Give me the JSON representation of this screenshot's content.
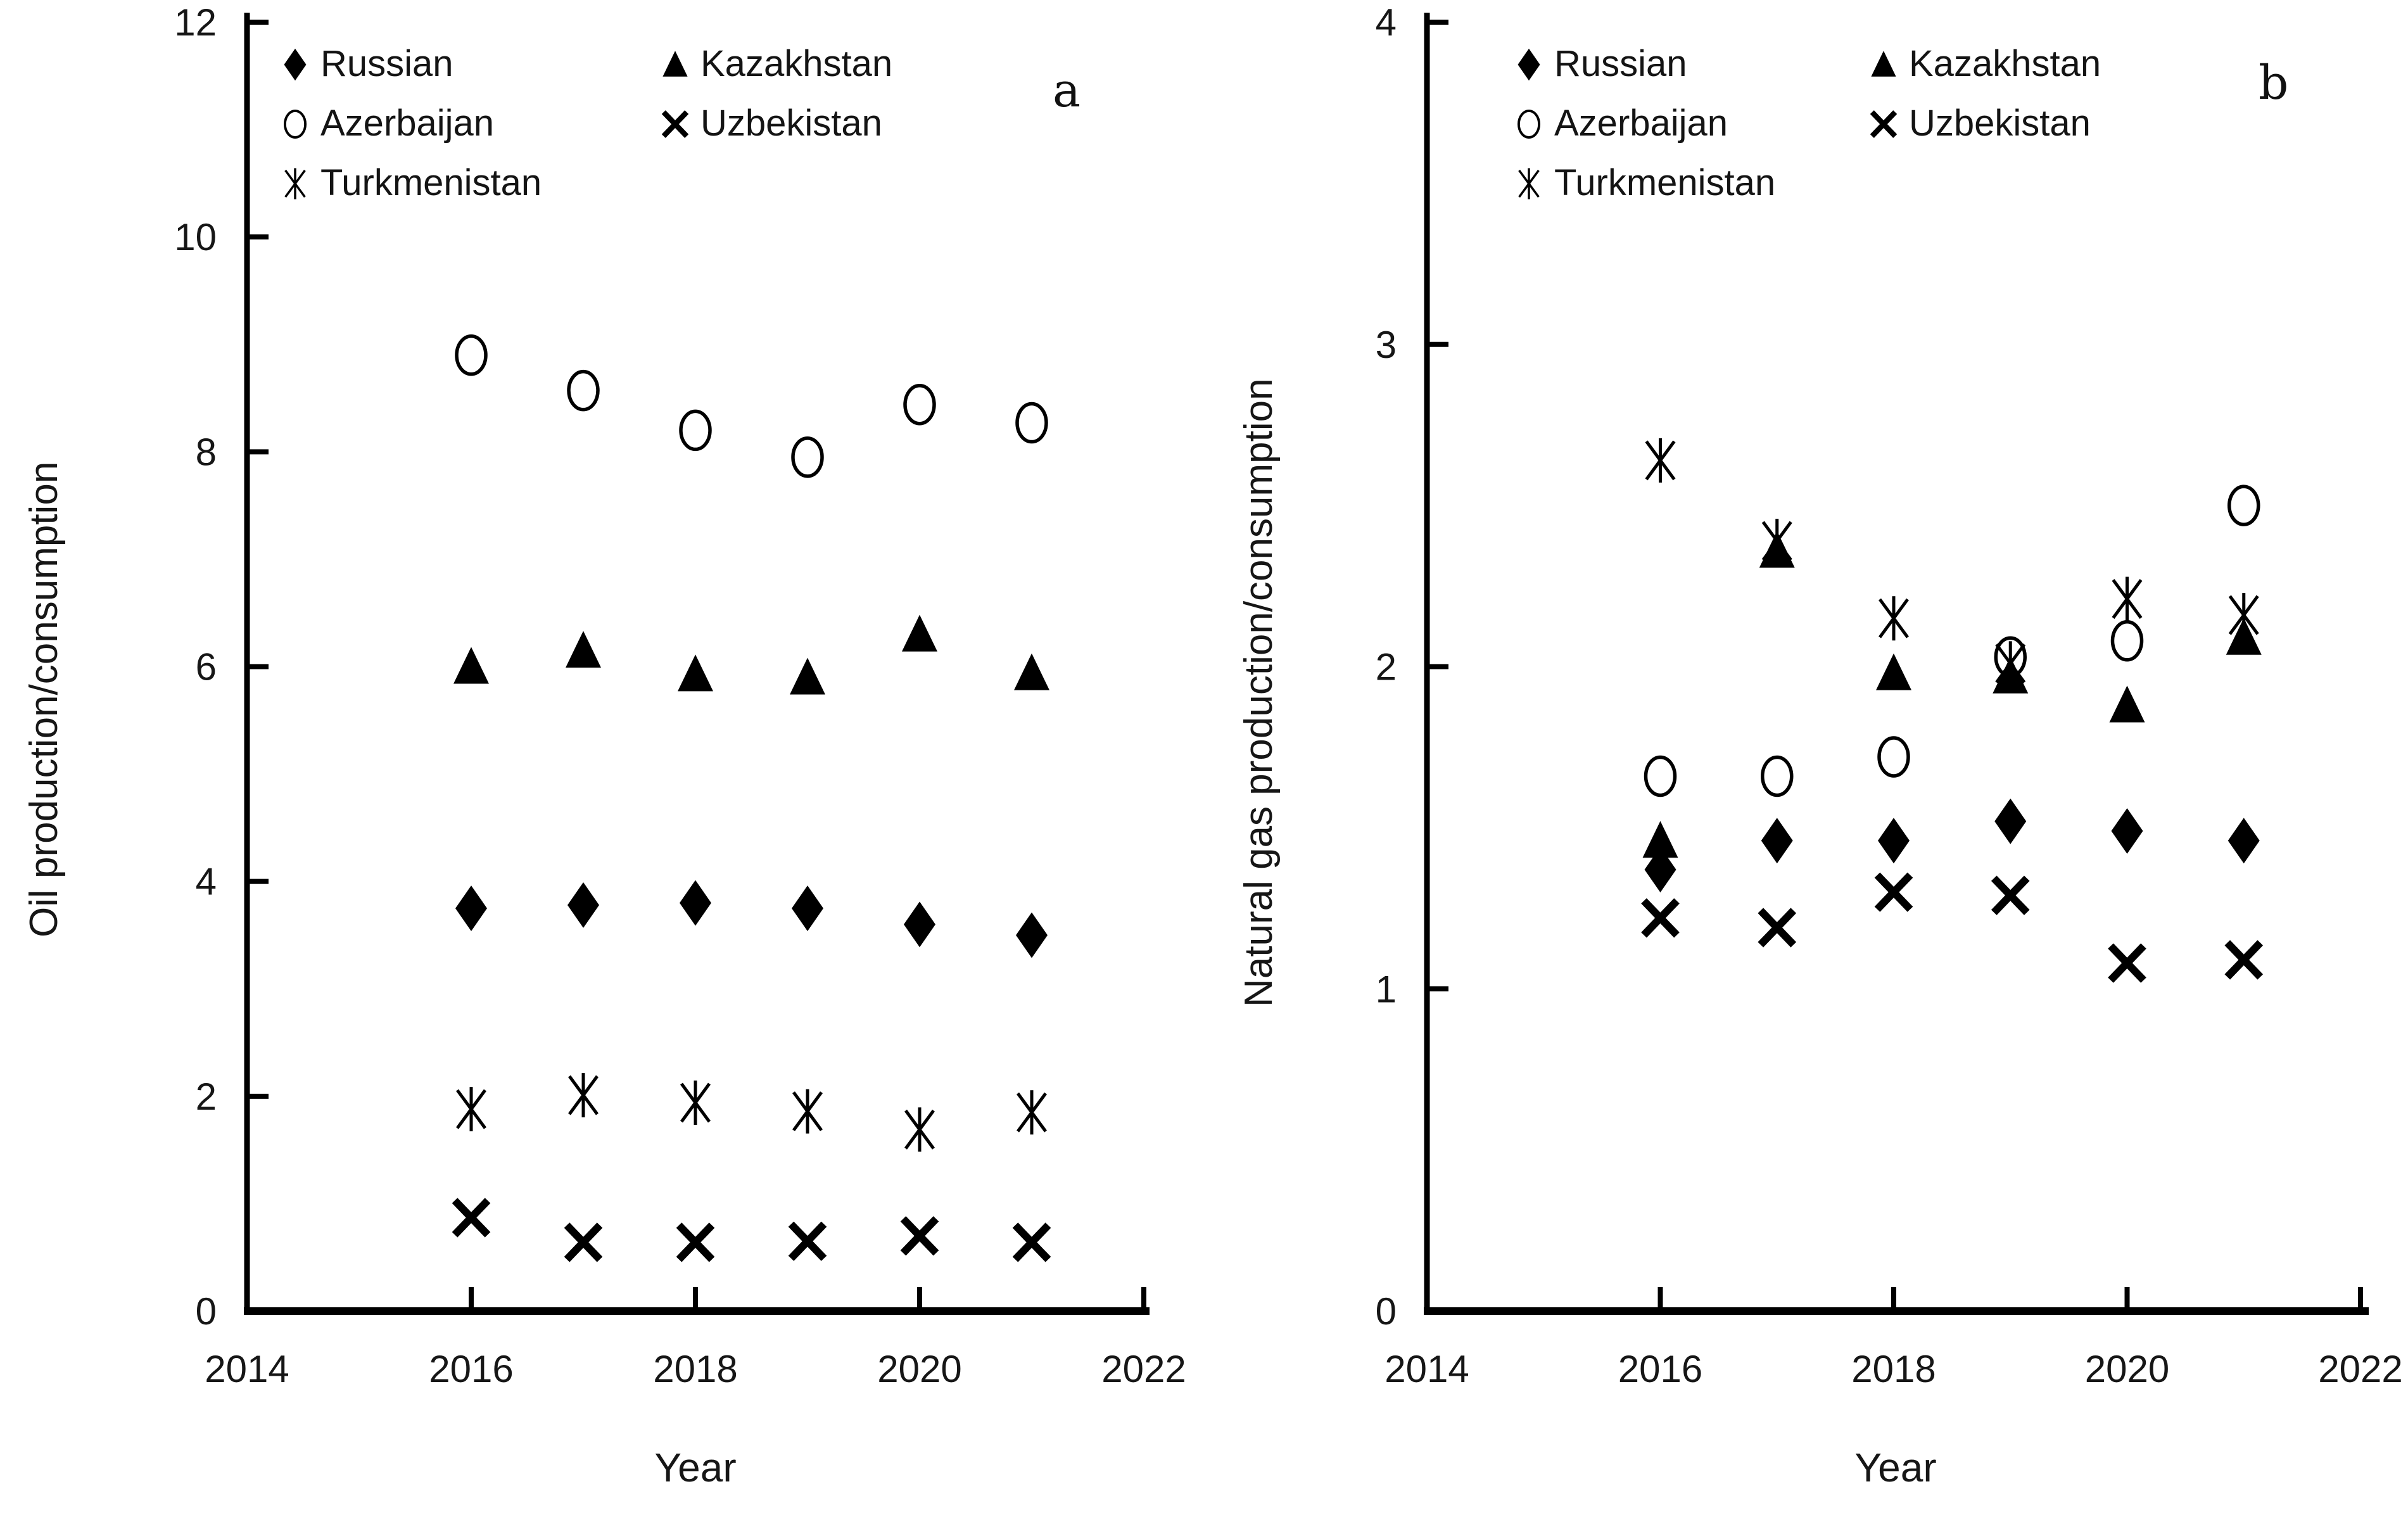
{
  "figure": {
    "background": "#ffffff",
    "marker_color": "#000000",
    "axis_color": "#000000"
  },
  "chart_data": [
    {
      "type": "scatter",
      "panel_label": "a",
      "xlabel": "Year",
      "ylabel": "Oil production/consumption",
      "xlim": [
        2014,
        2022
      ],
      "ylim": [
        0,
        12
      ],
      "xticks": [
        2014,
        2016,
        2018,
        2020,
        2022
      ],
      "yticks": [
        0,
        2,
        4,
        6,
        8,
        10,
        12
      ],
      "grid": false,
      "legend_position": "top-left",
      "x": [
        2016,
        2017,
        2018,
        2019,
        2020,
        2021
      ],
      "series": [
        {
          "name": "Russian",
          "marker": "diamond",
          "values": [
            3.75,
            3.78,
            3.8,
            3.75,
            3.6,
            3.5
          ]
        },
        {
          "name": "Kazakhstan",
          "marker": "triangle",
          "values": [
            6.0,
            6.15,
            5.93,
            5.9,
            6.3,
            5.94
          ]
        },
        {
          "name": "Azerbaijan",
          "marker": "circle-open",
          "values": [
            8.9,
            8.57,
            8.2,
            7.95,
            8.44,
            8.27
          ]
        },
        {
          "name": "Uzbekistan",
          "marker": "x-cross",
          "values": [
            0.87,
            0.64,
            0.64,
            0.65,
            0.7,
            0.64
          ]
        },
        {
          "name": "Turkmenistan",
          "marker": "asterisk",
          "values": [
            1.88,
            2.01,
            1.94,
            1.86,
            1.69,
            1.85
          ]
        }
      ]
    },
    {
      "type": "scatter",
      "panel_label": "b",
      "xlabel": "Year",
      "ylabel": "Natural gas production/consumption",
      "xlim": [
        2014,
        2022
      ],
      "ylim": [
        0,
        4
      ],
      "xticks": [
        2014,
        2016,
        2018,
        2020,
        2022
      ],
      "yticks": [
        0,
        1,
        2,
        3,
        4
      ],
      "grid": false,
      "legend_position": "top-left",
      "x": [
        2016,
        2017,
        2018,
        2019,
        2020,
        2021
      ],
      "series": [
        {
          "name": "Russian",
          "marker": "diamond",
          "values": [
            1.37,
            1.46,
            1.46,
            1.52,
            1.49,
            1.46
          ]
        },
        {
          "name": "Kazakhstan",
          "marker": "triangle",
          "values": [
            1.46,
            2.36,
            1.98,
            1.97,
            1.88,
            2.09
          ]
        },
        {
          "name": "Azerbaijan",
          "marker": "circle-open",
          "values": [
            1.66,
            1.66,
            1.72,
            2.03,
            2.08,
            2.5
          ]
        },
        {
          "name": "Uzbekistan",
          "marker": "x-cross",
          "values": [
            1.22,
            1.19,
            1.3,
            1.29,
            1.08,
            1.09
          ]
        },
        {
          "name": "Turkmenistan",
          "marker": "asterisk",
          "values": [
            2.64,
            2.39,
            2.15,
            2.01,
            2.21,
            2.16
          ]
        }
      ]
    }
  ]
}
